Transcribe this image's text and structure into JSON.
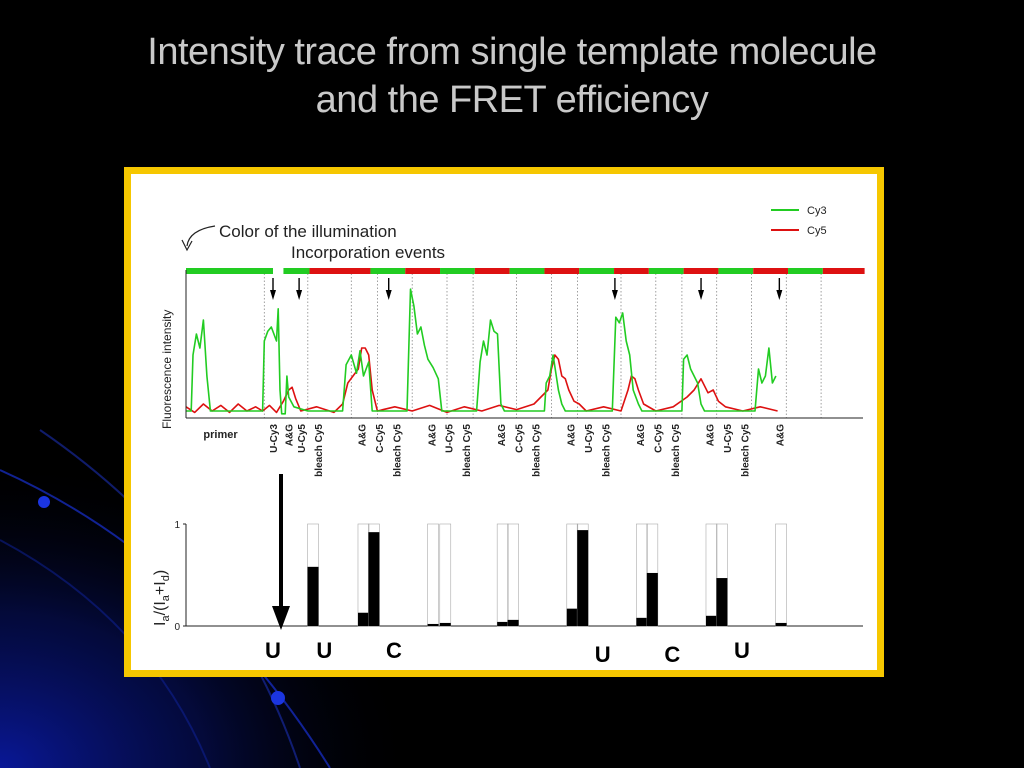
{
  "slide": {
    "title_line1": "Intensity trace from single template molecule",
    "title_line2": "and the FRET efficiency",
    "colors": {
      "background": "#000000",
      "title": "#c9c9c9",
      "frame": "#f6c700",
      "accent_blue": "#0a1aa8"
    }
  },
  "chart_data": [
    {
      "type": "line",
      "ylabel": "Fluorescence intensity",
      "annotations": {
        "illumination": "Color of the illumination",
        "incorporation": "Incorporation events"
      },
      "legend": {
        "position": "top-right",
        "entries": [
          {
            "name": "Cy3",
            "color": "#22cc22"
          },
          {
            "name": "Cy5",
            "color": "#dd1111"
          }
        ]
      },
      "illumination_bar": [
        {
          "color": "green",
          "x0": 0,
          "x1": 100
        },
        {
          "color": "green",
          "x0": 112,
          "x1": 142
        },
        {
          "color": "red",
          "x0": 142,
          "x1": 212
        },
        {
          "color": "green",
          "x0": 212,
          "x1": 252
        },
        {
          "color": "red",
          "x0": 252,
          "x1": 292
        },
        {
          "color": "green",
          "x0": 292,
          "x1": 332
        },
        {
          "color": "red",
          "x0": 332,
          "x1": 372
        },
        {
          "color": "green",
          "x0": 372,
          "x1": 412
        },
        {
          "color": "red",
          "x0": 412,
          "x1": 452
        },
        {
          "color": "green",
          "x0": 452,
          "x1": 492
        },
        {
          "color": "red",
          "x0": 492,
          "x1": 532
        },
        {
          "color": "green",
          "x0": 532,
          "x1": 572
        },
        {
          "color": "red",
          "x0": 572,
          "x1": 612
        },
        {
          "color": "green",
          "x0": 612,
          "x1": 652
        },
        {
          "color": "red",
          "x0": 652,
          "x1": 692
        },
        {
          "color": "green",
          "x0": 692,
          "x1": 732
        },
        {
          "color": "red",
          "x0": 732,
          "x1": 780
        }
      ],
      "incorporation_arrows": [
        100,
        130,
        233,
        493,
        592,
        682
      ],
      "event_lines": [
        90,
        140,
        190,
        220,
        260,
        300,
        330,
        380,
        420,
        450,
        500,
        540,
        570,
        610,
        650,
        690,
        730
      ],
      "segment_labels": [
        {
          "x": 20,
          "text": "primer"
        },
        {
          "x": 100,
          "text": "U-Cy3"
        },
        {
          "x": 118,
          "text": "A&G"
        },
        {
          "x": 132,
          "text": "U-Cy5"
        },
        {
          "x": 152,
          "text": "bleach Cy5"
        },
        {
          "x": 202,
          "text": "A&G"
        },
        {
          "x": 222,
          "text": "C-Cy5"
        },
        {
          "x": 242,
          "text": "bleach Cy5"
        },
        {
          "x": 282,
          "text": "A&G"
        },
        {
          "x": 302,
          "text": "U-Cy5"
        },
        {
          "x": 322,
          "text": "bleach Cy5"
        },
        {
          "x": 362,
          "text": "A&G"
        },
        {
          "x": 382,
          "text": "C-Cy5"
        },
        {
          "x": 402,
          "text": "bleach Cy5"
        },
        {
          "x": 442,
          "text": "A&G"
        },
        {
          "x": 462,
          "text": "U-Cy5"
        },
        {
          "x": 482,
          "text": "bleach Cy5"
        },
        {
          "x": 522,
          "text": "A&G"
        },
        {
          "x": 542,
          "text": "C-Cy5"
        },
        {
          "x": 562,
          "text": "bleach Cy5"
        },
        {
          "x": 602,
          "text": "A&G"
        },
        {
          "x": 622,
          "text": "U-Cy5"
        },
        {
          "x": 642,
          "text": "bleach Cy5"
        },
        {
          "x": 682,
          "text": "A&G"
        }
      ],
      "series": [
        {
          "name": "Cy3",
          "color": "#22cc22",
          "points": [
            [
              0,
              0.05
            ],
            [
              6,
              0.05
            ],
            [
              8,
              0.45
            ],
            [
              12,
              0.6
            ],
            [
              16,
              0.5
            ],
            [
              20,
              0.7
            ],
            [
              24,
              0.3
            ],
            [
              28,
              0.05
            ],
            [
              88,
              0.05
            ],
            [
              90,
              0.55
            ],
            [
              94,
              0.62
            ],
            [
              98,
              0.65
            ],
            [
              104,
              0.55
            ],
            [
              106,
              0.78
            ],
            [
              108,
              0.2
            ],
            [
              110,
              0.03
            ],
            [
              114,
              0.03
            ],
            [
              116,
              0.3
            ],
            [
              118,
              0.15
            ],
            [
              124,
              0.08
            ],
            [
              140,
              0.05
            ],
            [
              180,
              0.05
            ],
            [
              184,
              0.38
            ],
            [
              190,
              0.45
            ],
            [
              196,
              0.32
            ],
            [
              200,
              0.48
            ],
            [
              204,
              0.3
            ],
            [
              210,
              0.4
            ],
            [
              214,
              0.05
            ],
            [
              254,
              0.05
            ],
            [
              258,
              0.92
            ],
            [
              262,
              0.8
            ],
            [
              266,
              0.6
            ],
            [
              270,
              0.65
            ],
            [
              274,
              0.52
            ],
            [
              278,
              0.42
            ],
            [
              284,
              0.36
            ],
            [
              290,
              0.28
            ],
            [
              294,
              0.05
            ],
            [
              334,
              0.05
            ],
            [
              338,
              0.4
            ],
            [
              342,
              0.55
            ],
            [
              346,
              0.45
            ],
            [
              350,
              0.7
            ],
            [
              354,
              0.62
            ],
            [
              358,
              0.6
            ],
            [
              362,
              0.1
            ],
            [
              366,
              0.05
            ],
            [
              412,
              0.05
            ],
            [
              414,
              0.25
            ],
            [
              418,
              0.3
            ],
            [
              422,
              0.45
            ],
            [
              428,
              0.2
            ],
            [
              432,
              0.1
            ],
            [
              436,
              0.05
            ],
            [
              490,
              0.05
            ],
            [
              494,
              0.72
            ],
            [
              498,
              0.68
            ],
            [
              502,
              0.75
            ],
            [
              506,
              0.55
            ],
            [
              510,
              0.45
            ],
            [
              514,
              0.2
            ],
            [
              520,
              0.1
            ],
            [
              524,
              0.05
            ],
            [
              570,
              0.05
            ],
            [
              572,
              0.42
            ],
            [
              576,
              0.45
            ],
            [
              580,
              0.35
            ],
            [
              584,
              0.3
            ],
            [
              588,
              0.25
            ],
            [
              592,
              0.1
            ],
            [
              596,
              0.05
            ],
            [
              654,
              0.05
            ],
            [
              658,
              0.35
            ],
            [
              662,
              0.25
            ],
            [
              666,
              0.3
            ],
            [
              670,
              0.5
            ],
            [
              674,
              0.25
            ],
            [
              678,
              0.3
            ]
          ]
        },
        {
          "name": "Cy5",
          "color": "#dd1111",
          "points": [
            [
              0,
              0.08
            ],
            [
              10,
              0.04
            ],
            [
              20,
              0.1
            ],
            [
              30,
              0.05
            ],
            [
              40,
              0.09
            ],
            [
              50,
              0.04
            ],
            [
              60,
              0.1
            ],
            [
              70,
              0.05
            ],
            [
              80,
              0.08
            ],
            [
              88,
              0.05
            ],
            [
              96,
              0.09
            ],
            [
              104,
              0.04
            ],
            [
              112,
              0.12
            ],
            [
              118,
              0.2
            ],
            [
              122,
              0.22
            ],
            [
              126,
              0.14
            ],
            [
              132,
              0.05
            ],
            [
              150,
              0.08
            ],
            [
              170,
              0.04
            ],
            [
              180,
              0.1
            ],
            [
              186,
              0.25
            ],
            [
              192,
              0.3
            ],
            [
              198,
              0.35
            ],
            [
              202,
              0.5
            ],
            [
              206,
              0.5
            ],
            [
              210,
              0.45
            ],
            [
              214,
              0.2
            ],
            [
              220,
              0.05
            ],
            [
              240,
              0.08
            ],
            [
              260,
              0.05
            ],
            [
              280,
              0.09
            ],
            [
              300,
              0.04
            ],
            [
              320,
              0.08
            ],
            [
              340,
              0.05
            ],
            [
              360,
              0.09
            ],
            [
              380,
              0.06
            ],
            [
              400,
              0.1
            ],
            [
              416,
              0.2
            ],
            [
              420,
              0.35
            ],
            [
              424,
              0.45
            ],
            [
              428,
              0.42
            ],
            [
              432,
              0.3
            ],
            [
              436,
              0.28
            ],
            [
              440,
              0.2
            ],
            [
              446,
              0.12
            ],
            [
              452,
              0.1
            ],
            [
              460,
              0.05
            ],
            [
              480,
              0.08
            ],
            [
              500,
              0.05
            ],
            [
              508,
              0.2
            ],
            [
              512,
              0.3
            ],
            [
              516,
              0.28
            ],
            [
              520,
              0.2
            ],
            [
              526,
              0.1
            ],
            [
              540,
              0.05
            ],
            [
              560,
              0.08
            ],
            [
              576,
              0.15
            ],
            [
              584,
              0.2
            ],
            [
              592,
              0.28
            ],
            [
              600,
              0.18
            ],
            [
              606,
              0.2
            ],
            [
              612,
              0.12
            ],
            [
              620,
              0.08
            ],
            [
              640,
              0.05
            ],
            [
              660,
              0.08
            ],
            [
              680,
              0.05
            ]
          ]
        }
      ]
    },
    {
      "type": "bar",
      "ylabel": "Ia/(Ia+Id)",
      "ylabel_main": "I",
      "ylabel_sub_a": "a",
      "ylabel_mid": "/(I",
      "ylabel_plus": "+I",
      "ylabel_sub_d": "d",
      "ylabel_close": ")",
      "ylim": [
        0,
        1
      ],
      "yticks": [
        "0",
        "1"
      ],
      "values": [
        0.58,
        0.13,
        0.92,
        0.02,
        0.03,
        0.04,
        0.06,
        0.17,
        0.94,
        0.08,
        0.52,
        0.1,
        0.47,
        0.03
      ],
      "letters": [
        {
          "x": 100,
          "text": "U"
        },
        {
          "x": 136,
          "text": "U"
        },
        {
          "x": 216,
          "text": "C"
        },
        {
          "x": 456,
          "text": "U"
        },
        {
          "x": 536,
          "text": "C"
        },
        {
          "x": 616,
          "text": "U"
        }
      ]
    }
  ]
}
